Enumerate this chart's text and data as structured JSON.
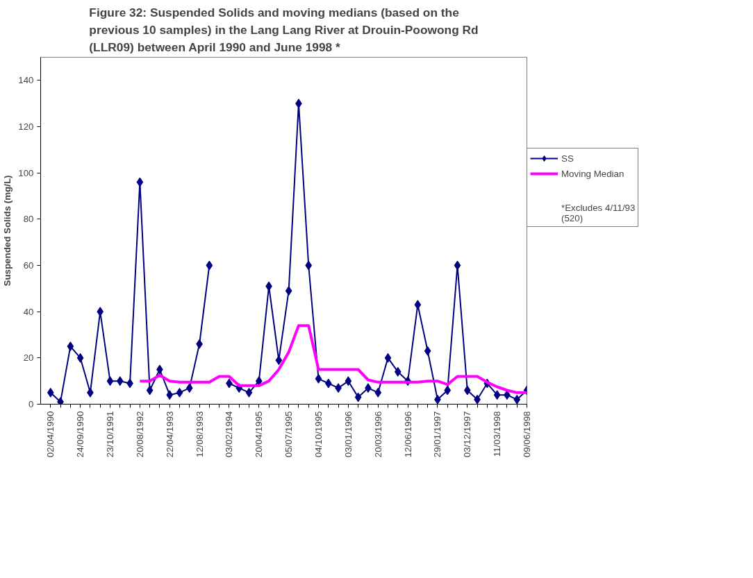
{
  "chart_data": {
    "type": "line",
    "title": "Figure 32: Suspended Solids and moving medians (based on the previous 10 samples) in the Lang Lang River at Drouin-Poowong Rd (LLR09) between April 1990 and June 1998 *",
    "ylabel": "Suspended Solids (mg/L)",
    "categories": [
      "02/04/1990",
      null,
      null,
      "24/09/1990",
      null,
      null,
      "23/10/1991",
      null,
      null,
      "20/08/1992",
      null,
      null,
      "22/04/1993",
      null,
      null,
      "12/08/1993",
      null,
      null,
      "03/02/1994",
      null,
      null,
      "20/04/1995",
      null,
      null,
      "05/07/1995",
      null,
      null,
      "04/10/1995",
      null,
      null,
      "03/01/1996",
      null,
      null,
      "20/03/1996",
      null,
      null,
      "12/06/1996",
      null,
      null,
      "29/01/1997",
      null,
      null,
      "03/12/1997",
      null,
      null,
      "11/03/1998",
      null,
      null,
      "09/06/1998"
    ],
    "series": [
      {
        "name": "SS",
        "color": "#000080",
        "marker": "diamond",
        "values": [
          5,
          1,
          25,
          20,
          5,
          40,
          10,
          10,
          9,
          96,
          6,
          15,
          4,
          5,
          7,
          26,
          60,
          null,
          9,
          7,
          5,
          10,
          51,
          19,
          49,
          130,
          60,
          11,
          9,
          7,
          10,
          3,
          7,
          5,
          20,
          14,
          10,
          43,
          23,
          2,
          6,
          60,
          6,
          2,
          9,
          4,
          4,
          2,
          6
        ]
      },
      {
        "name": "Moving Median",
        "color": "#ff00ff",
        "marker": "none",
        "values": [
          null,
          null,
          null,
          null,
          null,
          null,
          null,
          null,
          null,
          10,
          10,
          12.5,
          10,
          9.5,
          9.5,
          9.5,
          9.5,
          12,
          12,
          8,
          8,
          8,
          10,
          15,
          22.5,
          34,
          34,
          15,
          15,
          15,
          15,
          15,
          10.5,
          9.5,
          9.5,
          9.5,
          9.5,
          9.5,
          10,
          10,
          8.5,
          12,
          12,
          12,
          9.5,
          7.5,
          6,
          5,
          5
        ]
      }
    ],
    "ylim": [
      0,
      150
    ],
    "yticks": [
      0,
      20,
      40,
      60,
      80,
      100,
      120,
      140
    ],
    "grid": false,
    "legend": "right",
    "annotations": [
      "*Excludes 4/11/93 (520)"
    ]
  }
}
